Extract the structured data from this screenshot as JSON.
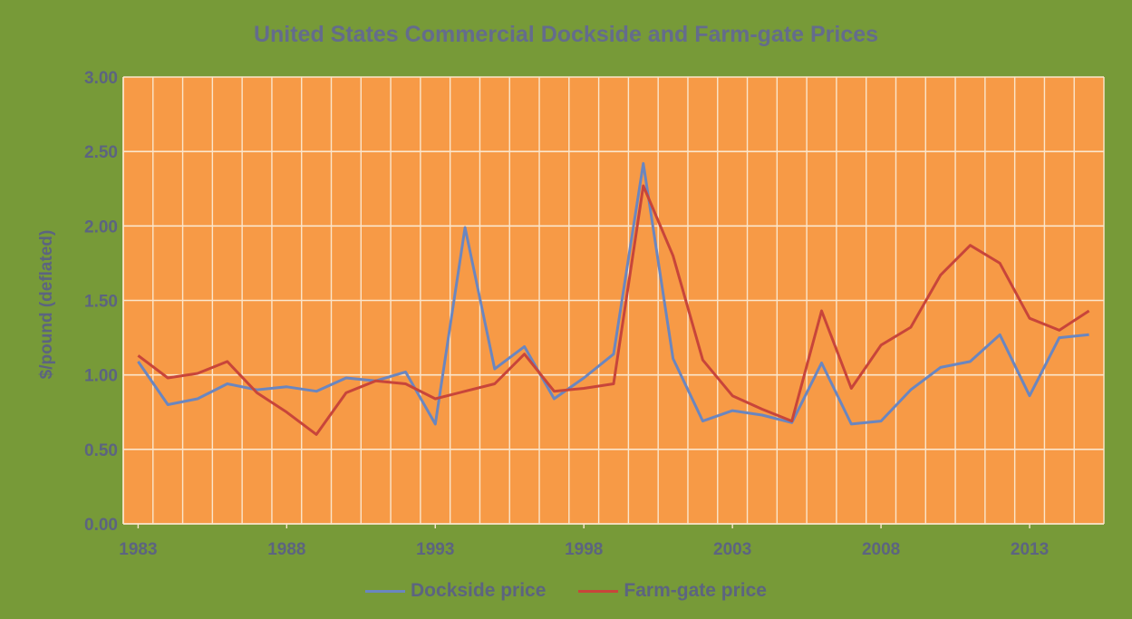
{
  "chart_data": {
    "type": "line",
    "title": "United States Commercial Dockside and Farm-gate Prices",
    "ylabel": "$/pound (deflated)",
    "xlabel": "",
    "x": [
      1983,
      1984,
      1985,
      1986,
      1987,
      1988,
      1989,
      1990,
      1991,
      1992,
      1993,
      1994,
      1995,
      1996,
      1997,
      1998,
      1999,
      2000,
      2001,
      2002,
      2003,
      2004,
      2005,
      2006,
      2007,
      2008,
      2009,
      2010,
      2011,
      2012,
      2013,
      2014,
      2015
    ],
    "x_tick_labels": [
      "1983",
      "1988",
      "1993",
      "1998",
      "2003",
      "2008",
      "2013"
    ],
    "y_tick_labels": [
      "0.00",
      "0.50",
      "1.00",
      "1.50",
      "2.00",
      "2.50",
      "3.00"
    ],
    "ylim": [
      0,
      3
    ],
    "grid": true,
    "legend_position": "bottom",
    "series": [
      {
        "name": "Dockside price",
        "color": "#6a86c0",
        "values": [
          1.09,
          0.8,
          0.84,
          0.94,
          0.9,
          0.92,
          0.89,
          0.98,
          0.96,
          1.02,
          0.67,
          1.99,
          1.04,
          1.19,
          0.84,
          0.98,
          1.14,
          2.42,
          1.11,
          0.69,
          0.76,
          0.73,
          0.68,
          1.08,
          0.67,
          0.69,
          0.9,
          1.05,
          1.09,
          1.27,
          0.86,
          1.25,
          1.27
        ]
      },
      {
        "name": "Farm-gate price",
        "color": "#c8453a",
        "values": [
          1.13,
          0.98,
          1.01,
          1.09,
          0.88,
          0.75,
          0.6,
          0.88,
          0.96,
          0.94,
          0.84,
          0.89,
          0.94,
          1.14,
          0.89,
          0.91,
          0.94,
          2.27,
          1.8,
          1.1,
          0.86,
          0.77,
          0.69,
          1.43,
          0.91,
          1.2,
          1.32,
          1.67,
          1.87,
          1.75,
          1.38,
          1.3,
          1.43
        ]
      }
    ],
    "colors": {
      "plot_background": "#f79a46",
      "chart_background": "#779a38",
      "gridline": "#fbe6cc",
      "axis_text": "#5c6480"
    }
  }
}
